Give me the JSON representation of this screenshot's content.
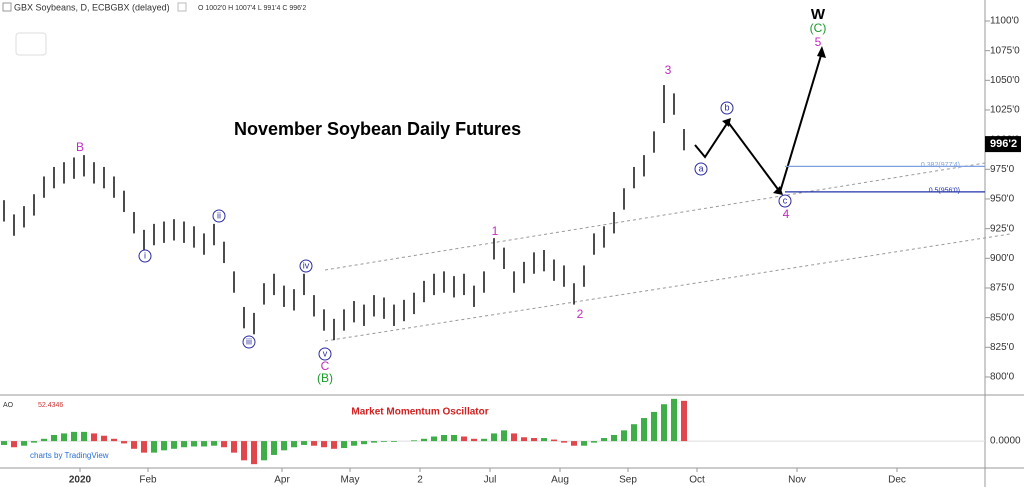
{
  "chart_data": {
    "type": "ohlc",
    "symbol": "GBX Soybeans, D, ECBGBX (delayed)",
    "ohlc_summary": "O 1002'0 H 1007'4 L 991'4 C 996'2",
    "title": "November Soybean Daily Futures",
    "oscillator_title": "Market Momentum Oscillator",
    "oscillator_name": "AO",
    "credit": "charts by TradingView",
    "color": "#111111",
    "high": [
      949,
      937,
      944,
      954,
      969,
      977,
      981,
      985,
      987,
      981,
      977,
      969,
      957,
      939,
      924,
      929,
      931,
      933,
      931,
      927,
      921,
      929,
      914,
      889,
      859,
      854,
      879,
      887,
      877,
      874,
      887,
      869,
      857,
      849,
      857,
      864,
      861,
      869,
      867,
      861,
      865,
      871,
      881,
      887,
      889,
      885,
      887,
      877,
      889,
      917,
      909,
      889,
      897,
      905,
      907,
      899,
      894,
      879,
      894,
      921,
      927,
      939,
      959,
      977,
      987,
      1007,
      1046,
      1039,
      1009
    ],
    "low": [
      931,
      919,
      926,
      936,
      951,
      959,
      963,
      967,
      969,
      963,
      959,
      951,
      939,
      921,
      906,
      911,
      913,
      915,
      913,
      909,
      903,
      911,
      896,
      871,
      841,
      836,
      861,
      869,
      859,
      856,
      869,
      851,
      839,
      831,
      839,
      846,
      843,
      851,
      849,
      843,
      847,
      853,
      863,
      869,
      871,
      867,
      869,
      859,
      871,
      899,
      891,
      871,
      879,
      887,
      889,
      881,
      876,
      861,
      876,
      903,
      909,
      921,
      941,
      959,
      969,
      989,
      1014,
      1021,
      991
    ],
    "xlim": [
      -0.4,
      98.1
    ],
    "xticks": [
      {
        "value": 7.6,
        "label": "2020"
      },
      {
        "value": 14.4,
        "label": "Feb"
      },
      {
        "value": 27.8,
        "label": "Apr"
      },
      {
        "value": 34.6,
        "label": "May"
      },
      {
        "value": 41.6,
        "label": "2"
      },
      {
        "value": 48.6,
        "label": "Jul"
      },
      {
        "value": 55.6,
        "label": "Aug"
      },
      {
        "value": 62.4,
        "label": "Sep"
      },
      {
        "value": 69.3,
        "label": "Oct"
      },
      {
        "value": 79.3,
        "label": "Nov"
      },
      {
        "value": 89.3,
        "label": "Dec"
      }
    ],
    "ylim": [
      784.8,
      1117.7
    ],
    "yticks": [
      {
        "value": 800,
        "label": "800'0"
      },
      {
        "value": 825,
        "label": "825'0"
      },
      {
        "value": 850,
        "label": "850'0"
      },
      {
        "value": 875,
        "label": "875'0"
      },
      {
        "value": 900,
        "label": "900'0"
      },
      {
        "value": 925,
        "label": "925'0"
      },
      {
        "value": 950,
        "label": "950'0"
      },
      {
        "value": 975,
        "label": "975'0"
      },
      {
        "value": 1000,
        "label": "1000'0"
      },
      {
        "value": 1025,
        "label": "1025'0"
      },
      {
        "value": 1050,
        "label": "1050'0"
      },
      {
        "value": 1075,
        "label": "1075'0"
      },
      {
        "value": 1100,
        "label": "1100'0"
      }
    ],
    "last_price": {
      "value": 996.25,
      "label": "996'2"
    },
    "fib_levels": [
      {
        "value": 977.5,
        "label": "0.382(977'4)",
        "color": "#7f9fdf"
      },
      {
        "value": 956,
        "label": "0.5(956'0)",
        "color": "#2233aa"
      }
    ],
    "ao": [
      -5,
      -8,
      -6,
      -2,
      3,
      8,
      10,
      12,
      12,
      10,
      7,
      3,
      -3,
      -10,
      -15,
      -15,
      -12,
      -10,
      -8,
      -7,
      -7,
      -6,
      -8,
      -15,
      -25,
      -30,
      -25,
      -18,
      -12,
      -8,
      -5,
      -6,
      -8,
      -10,
      -9,
      -6,
      -4,
      -2,
      -1,
      -1,
      0,
      1,
      3,
      6,
      8,
      8,
      6,
      3,
      3,
      10,
      14,
      10,
      5,
      4,
      4,
      2,
      -2,
      -6,
      -6,
      -2,
      4,
      8,
      14,
      22,
      30,
      38,
      48,
      55,
      52.4346
    ],
    "ao_ylim": [
      -35,
      60
    ],
    "ao_yticks": [
      {
        "value": 0,
        "label": "0.0000"
      }
    ],
    "ao_colors": {
      "up": "#3fae49",
      "down": "#e0474c"
    },
    "wave_labels": [
      "B",
      "i",
      "ii",
      "iii",
      "iv",
      "v",
      "C",
      "(B)",
      "1",
      "2",
      "3",
      "a",
      "b",
      "c",
      "4",
      "5",
      "(C)",
      "W"
    ]
  }
}
